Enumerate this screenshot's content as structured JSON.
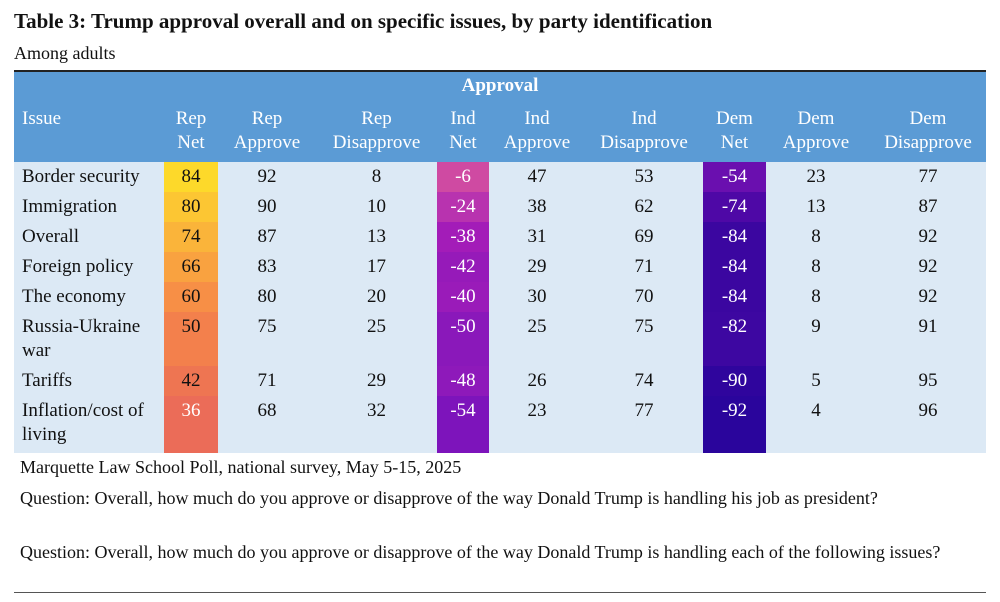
{
  "title": "Table 3: Trump approval overall and on specific issues, by party identification",
  "subtitle": "Among adults",
  "group_header": "Approval",
  "columns": [
    {
      "key": "issue",
      "l1": "Issue",
      "l2": ""
    },
    {
      "key": "rep_net",
      "l1": "Rep",
      "l2": "Net"
    },
    {
      "key": "rep_app",
      "l1": "Rep",
      "l2": "Approve"
    },
    {
      "key": "rep_dis",
      "l1": "Rep",
      "l2": "Disapprove"
    },
    {
      "key": "ind_net",
      "l1": "Ind",
      "l2": "Net"
    },
    {
      "key": "ind_app",
      "l1": "Ind",
      "l2": "Approve"
    },
    {
      "key": "ind_dis",
      "l1": "Ind",
      "l2": "Disapprove"
    },
    {
      "key": "dem_net",
      "l1": "Dem",
      "l2": "Net"
    },
    {
      "key": "dem_app",
      "l1": "Dem",
      "l2": "Approve"
    },
    {
      "key": "dem_dis",
      "l1": "Dem",
      "l2": "Disapprove"
    }
  ],
  "rows": [
    {
      "issue": [
        "Border security"
      ],
      "rep_net": 84,
      "rep_app": 92,
      "rep_dis": 8,
      "ind_net": -6,
      "ind_app": 47,
      "ind_dis": 53,
      "dem_net": -54,
      "dem_app": 23,
      "dem_dis": 77
    },
    {
      "issue": [
        "Immigration"
      ],
      "rep_net": 80,
      "rep_app": 90,
      "rep_dis": 10,
      "ind_net": -24,
      "ind_app": 38,
      "ind_dis": 62,
      "dem_net": -74,
      "dem_app": 13,
      "dem_dis": 87
    },
    {
      "issue": [
        "Overall"
      ],
      "rep_net": 74,
      "rep_app": 87,
      "rep_dis": 13,
      "ind_net": -38,
      "ind_app": 31,
      "ind_dis": 69,
      "dem_net": -84,
      "dem_app": 8,
      "dem_dis": 92
    },
    {
      "issue": [
        "Foreign policy"
      ],
      "rep_net": 66,
      "rep_app": 83,
      "rep_dis": 17,
      "ind_net": -42,
      "ind_app": 29,
      "ind_dis": 71,
      "dem_net": -84,
      "dem_app": 8,
      "dem_dis": 92
    },
    {
      "issue": [
        "The economy"
      ],
      "rep_net": 60,
      "rep_app": 80,
      "rep_dis": 20,
      "ind_net": -40,
      "ind_app": 30,
      "ind_dis": 70,
      "dem_net": -84,
      "dem_app": 8,
      "dem_dis": 92
    },
    {
      "issue": [
        "Russia-Ukraine",
        "war"
      ],
      "rep_net": 50,
      "rep_app": 75,
      "rep_dis": 25,
      "ind_net": -50,
      "ind_app": 25,
      "ind_dis": 75,
      "dem_net": -82,
      "dem_app": 9,
      "dem_dis": 91
    },
    {
      "issue": [
        "Tariffs"
      ],
      "rep_net": 42,
      "rep_app": 71,
      "rep_dis": 29,
      "ind_net": -48,
      "ind_app": 26,
      "ind_dis": 74,
      "dem_net": -90,
      "dem_app": 5,
      "dem_dis": 95
    },
    {
      "issue": [
        "Inflation/cost of",
        "living"
      ],
      "rep_net": 36,
      "rep_app": 68,
      "rep_dis": 32,
      "ind_net": -54,
      "ind_app": 23,
      "ind_dis": 77,
      "dem_net": -92,
      "dem_app": 4,
      "dem_dis": 96
    }
  ],
  "heat_colors": {
    "rep_net": [
      "#fdd92a",
      "#fcc633",
      "#fab43a",
      "#f9a240",
      "#f78f46",
      "#f3804c",
      "#ee7552",
      "#eb6c58"
    ],
    "ind_net": [
      "#cf4aa2",
      "#b833af",
      "#a31cb8",
      "#961ab9",
      "#9a1bb9",
      "#8a18ba",
      "#8e19ba",
      "#7d14bb"
    ],
    "dem_net": [
      "#6a0faf",
      "#4e08a6",
      "#3b06a0",
      "#3b06a0",
      "#3b06a0",
      "#3d07a1",
      "#2f059d",
      "#2a059c"
    ]
  },
  "header_color": "#5b9bd5",
  "body_color": "#dce9f5",
  "footer": {
    "source": "Marquette Law School Poll, national survey, May 5-15, 2025",
    "q1": "Question: Overall, how much do you approve or disapprove of the way Donald Trump is handling his job as president?",
    "q2": "Question: Overall, how much do you approve or disapprove of the way Donald Trump is handling each of the following issues?"
  }
}
